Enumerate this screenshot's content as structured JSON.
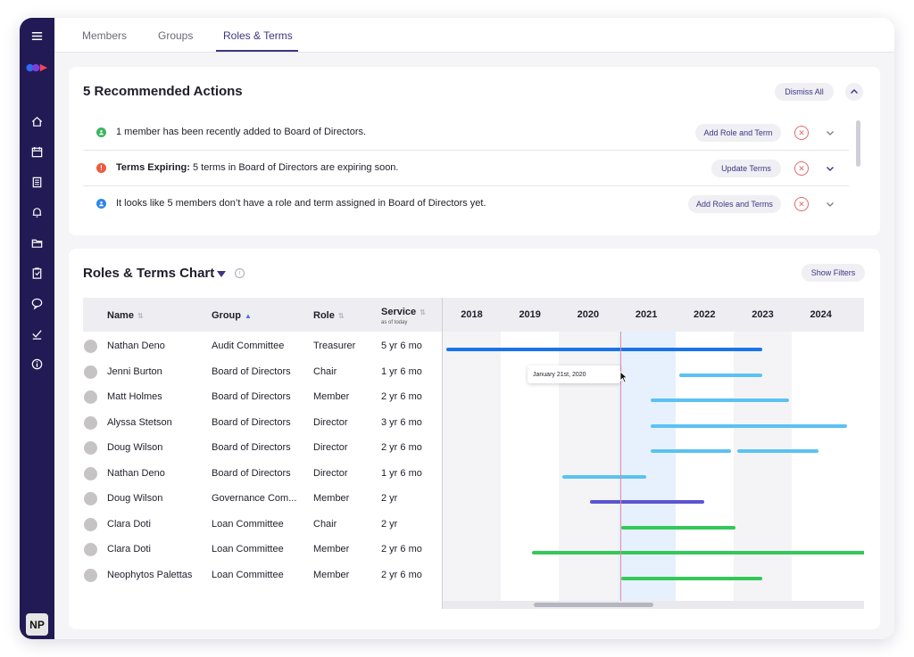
{
  "sidebar": {
    "menu_icon": "hamburger-menu-icon",
    "logo_icon": "app-logo",
    "items": [
      {
        "icon": "home-icon"
      },
      {
        "icon": "calendar-icon"
      },
      {
        "icon": "document-icon"
      },
      {
        "icon": "bell-icon"
      },
      {
        "icon": "folder-icon"
      },
      {
        "icon": "clipboard-icon"
      },
      {
        "icon": "chat-icon"
      },
      {
        "icon": "checkmark-icon"
      },
      {
        "icon": "info-icon"
      }
    ],
    "avatar_initials": "NP"
  },
  "tabs": [
    {
      "label": "Members"
    },
    {
      "label": "Groups"
    },
    {
      "label": "Roles & Terms",
      "active": true
    }
  ],
  "actions_card": {
    "title": "5 Recommended Actions",
    "dismiss_all_label": "Dismiss All",
    "items": [
      {
        "status": "success",
        "status_color": "#3cb55f",
        "text_bold": "",
        "text": "1 member has been recently added to Board of Directors.",
        "button": "Add Role and Term"
      },
      {
        "status": "warning",
        "status_color": "#ef5a3c",
        "text_bold": "Terms Expiring:",
        "text": " 5 terms in Board of Directors are expiring soon.",
        "button": "Update Terms"
      },
      {
        "status": "info",
        "status_color": "#2e87e8",
        "text_bold": "",
        "text": "It looks like 5 members don’t have a role and term assigned in Board of Directors yet.",
        "button": "Add Roles and Terms"
      }
    ]
  },
  "chart_card": {
    "title": "Roles & Terms Chart",
    "show_filters_label": "Show Filters",
    "columns": {
      "name": "Name",
      "group": "Group",
      "role": "Role",
      "service": "Service",
      "service_sub": "as of today"
    },
    "years": [
      "2018",
      "2019",
      "2020",
      "2021",
      "2022",
      "2023",
      "2024"
    ],
    "tooltip": "January 21st, 2020",
    "colors": {
      "dark_blue": "#1a73e8",
      "light_blue": "#5bc2f2",
      "purple": "#5b55cf",
      "green": "#34c759",
      "highlight": "#e6f1fd",
      "today_line": "#e78a9a"
    },
    "rows": [
      {
        "name": "Nathan Deno",
        "group": "Audit Committee",
        "role": "Treasurer",
        "service": "5 yr 6 mo"
      },
      {
        "name": "Jenni Burton",
        "group": "Board of Directors",
        "role": "Chair",
        "service": "1 yr 6 mo"
      },
      {
        "name": "Matt Holmes",
        "group": "Board of Directors",
        "role": "Member",
        "service": "2 yr 6 mo"
      },
      {
        "name": "Alyssa Stetson",
        "group": "Board of Directors",
        "role": "Director",
        "service": "3 yr 6 mo"
      },
      {
        "name": "Doug Wilson",
        "group": "Board of Directors",
        "role": "Director",
        "service": "2 yr 6 mo"
      },
      {
        "name": "Nathan Deno",
        "group": "Board of Directors",
        "role": "Director",
        "service": "1 yr 6 mo"
      },
      {
        "name": "Doug Wilson",
        "group": "Governance Com...",
        "role": "Member",
        "service": "2 yr"
      },
      {
        "name": "Clara Doti",
        "group": "Loan Committee",
        "role": "Chair",
        "service": "2 yr"
      },
      {
        "name": "Clara Doti",
        "group": "Loan Committee",
        "role": "Member",
        "service": "2 yr 6 mo"
      },
      {
        "name": "Neophytos Palettas",
        "group": "Loan Committee",
        "role": "Member",
        "service": "2 yr 6 mo"
      }
    ]
  }
}
